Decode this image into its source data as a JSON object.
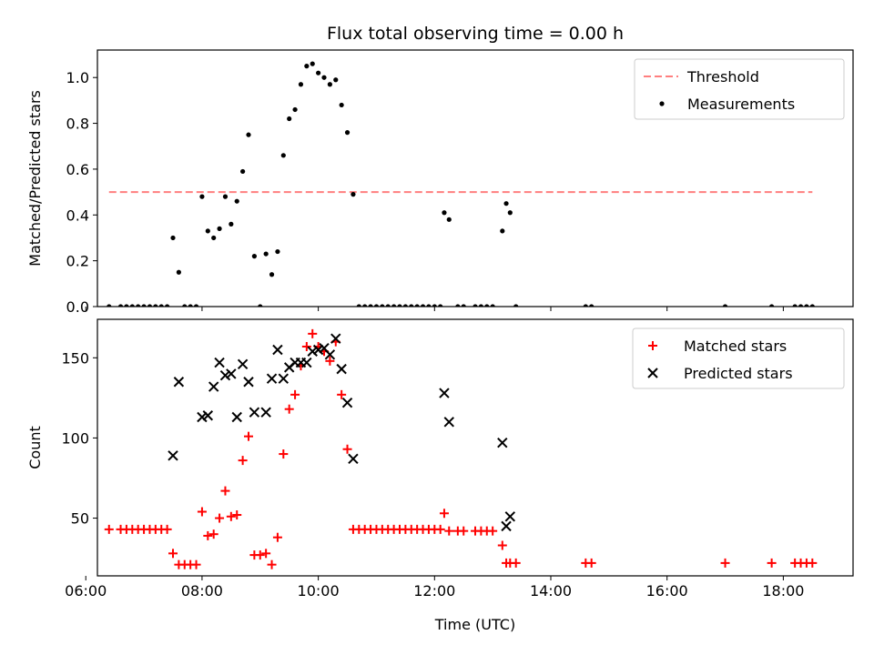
{
  "chart_data": [
    {
      "type": "scatter",
      "title": "Flux total observing time = 0.00 h",
      "xlabel": "",
      "ylabel": "Matched/Predicted stars",
      "xlim": [
        "06:12",
        "19:12"
      ],
      "ylim": [
        0,
        1.12
      ],
      "x_ticks": [
        "06:00",
        "08:00",
        "10:00",
        "12:00",
        "14:00",
        "16:00",
        "18:00"
      ],
      "y_ticks": [
        "0.0",
        "0.2",
        "0.4",
        "0.6",
        "0.8",
        "1.0"
      ],
      "legend_position": "top-right",
      "series": [
        {
          "name": "Threshold",
          "kind": "line",
          "style": "dashed",
          "color": "#ff7f7f",
          "points": [
            [
              "06:24",
              0.5
            ],
            [
              "18:30",
              0.5
            ]
          ]
        },
        {
          "name": "Measurements",
          "kind": "scatter",
          "marker": "dot",
          "color": "#000000",
          "points": [
            [
              "06:24",
              0.0
            ],
            [
              "06:36",
              0.0
            ],
            [
              "06:42",
              0.0
            ],
            [
              "06:48",
              0.0
            ],
            [
              "06:54",
              0.0
            ],
            [
              "07:00",
              0.0
            ],
            [
              "07:06",
              0.0
            ],
            [
              "07:12",
              0.0
            ],
            [
              "07:18",
              0.0
            ],
            [
              "07:24",
              0.0
            ],
            [
              "07:30",
              0.3
            ],
            [
              "07:36",
              0.15
            ],
            [
              "07:42",
              0.0
            ],
            [
              "07:48",
              0.0
            ],
            [
              "07:54",
              0.0
            ],
            [
              "08:00",
              0.48
            ],
            [
              "08:06",
              0.33
            ],
            [
              "08:12",
              0.3
            ],
            [
              "08:18",
              0.34
            ],
            [
              "08:24",
              0.48
            ],
            [
              "08:30",
              0.36
            ],
            [
              "08:36",
              0.46
            ],
            [
              "08:42",
              0.59
            ],
            [
              "08:48",
              0.75
            ],
            [
              "08:54",
              0.22
            ],
            [
              "09:00",
              0.0
            ],
            [
              "09:06",
              0.23
            ],
            [
              "09:12",
              0.14
            ],
            [
              "09:18",
              0.24
            ],
            [
              "09:24",
              0.66
            ],
            [
              "09:30",
              0.82
            ],
            [
              "09:36",
              0.86
            ],
            [
              "09:42",
              0.97
            ],
            [
              "09:48",
              1.05
            ],
            [
              "09:54",
              1.06
            ],
            [
              "10:00",
              1.02
            ],
            [
              "10:06",
              1.0
            ],
            [
              "10:12",
              0.97
            ],
            [
              "10:18",
              0.99
            ],
            [
              "10:24",
              0.88
            ],
            [
              "10:30",
              0.76
            ],
            [
              "10:36",
              0.49
            ],
            [
              "10:42",
              0.0
            ],
            [
              "10:48",
              0.0
            ],
            [
              "10:54",
              0.0
            ],
            [
              "11:00",
              0.0
            ],
            [
              "11:06",
              0.0
            ],
            [
              "11:12",
              0.0
            ],
            [
              "11:18",
              0.0
            ],
            [
              "11:24",
              0.0
            ],
            [
              "11:30",
              0.0
            ],
            [
              "11:36",
              0.0
            ],
            [
              "11:42",
              0.0
            ],
            [
              "11:48",
              0.0
            ],
            [
              "11:54",
              0.0
            ],
            [
              "12:00",
              0.0
            ],
            [
              "12:06",
              0.0
            ],
            [
              "12:10",
              0.41
            ],
            [
              "12:15",
              0.38
            ],
            [
              "12:24",
              0.0
            ],
            [
              "12:30",
              0.0
            ],
            [
              "12:42",
              0.0
            ],
            [
              "12:48",
              0.0
            ],
            [
              "12:54",
              0.0
            ],
            [
              "13:00",
              0.0
            ],
            [
              "13:10",
              0.33
            ],
            [
              "13:14",
              0.45
            ],
            [
              "13:18",
              0.41
            ],
            [
              "13:24",
              0.0
            ],
            [
              "14:36",
              0.0
            ],
            [
              "14:42",
              0.0
            ],
            [
              "17:00",
              0.0
            ],
            [
              "17:48",
              0.0
            ],
            [
              "18:12",
              0.0
            ],
            [
              "18:18",
              0.0
            ],
            [
              "18:24",
              0.0
            ],
            [
              "18:30",
              0.0
            ]
          ]
        }
      ]
    },
    {
      "type": "scatter",
      "title": "",
      "xlabel": "Time (UTC)",
      "ylabel": "Count",
      "xlim": [
        "06:12",
        "19:12"
      ],
      "ylim": [
        14,
        174
      ],
      "x_ticks": [
        "06:00",
        "08:00",
        "10:00",
        "12:00",
        "14:00",
        "16:00",
        "18:00"
      ],
      "y_ticks": [
        "50",
        "100",
        "150"
      ],
      "legend_position": "top-right",
      "series": [
        {
          "name": "Matched stars",
          "kind": "scatter",
          "marker": "plus",
          "color": "#ff0000",
          "points": [
            [
              "06:24",
              43
            ],
            [
              "06:36",
              43
            ],
            [
              "06:42",
              43
            ],
            [
              "06:48",
              43
            ],
            [
              "06:54",
              43
            ],
            [
              "07:00",
              43
            ],
            [
              "07:06",
              43
            ],
            [
              "07:12",
              43
            ],
            [
              "07:18",
              43
            ],
            [
              "07:24",
              43
            ],
            [
              "07:30",
              28
            ],
            [
              "07:36",
              21
            ],
            [
              "07:42",
              21
            ],
            [
              "07:48",
              21
            ],
            [
              "07:54",
              21
            ],
            [
              "08:00",
              54
            ],
            [
              "08:06",
              39
            ],
            [
              "08:12",
              40
            ],
            [
              "08:18",
              50
            ],
            [
              "08:24",
              67
            ],
            [
              "08:30",
              51
            ],
            [
              "08:36",
              52
            ],
            [
              "08:42",
              86
            ],
            [
              "08:48",
              101
            ],
            [
              "08:54",
              27
            ],
            [
              "09:00",
              27
            ],
            [
              "09:06",
              28
            ],
            [
              "09:12",
              21
            ],
            [
              "09:18",
              38
            ],
            [
              "09:24",
              90
            ],
            [
              "09:30",
              118
            ],
            [
              "09:36",
              127
            ],
            [
              "09:42",
              145
            ],
            [
              "09:48",
              157
            ],
            [
              "09:54",
              165
            ],
            [
              "10:00",
              157
            ],
            [
              "10:06",
              154
            ],
            [
              "10:12",
              148
            ],
            [
              "10:18",
              160
            ],
            [
              "10:24",
              127
            ],
            [
              "10:30",
              93
            ],
            [
              "10:36",
              43
            ],
            [
              "10:42",
              43
            ],
            [
              "10:48",
              43
            ],
            [
              "10:54",
              43
            ],
            [
              "11:00",
              43
            ],
            [
              "11:06",
              43
            ],
            [
              "11:12",
              43
            ],
            [
              "11:18",
              43
            ],
            [
              "11:24",
              43
            ],
            [
              "11:30",
              43
            ],
            [
              "11:36",
              43
            ],
            [
              "11:42",
              43
            ],
            [
              "11:48",
              43
            ],
            [
              "11:54",
              43
            ],
            [
              "12:00",
              43
            ],
            [
              "12:06",
              43
            ],
            [
              "12:10",
              53
            ],
            [
              "12:15",
              42
            ],
            [
              "12:24",
              42
            ],
            [
              "12:30",
              42
            ],
            [
              "12:42",
              42
            ],
            [
              "12:48",
              42
            ],
            [
              "12:54",
              42
            ],
            [
              "13:00",
              42
            ],
            [
              "13:10",
              33
            ],
            [
              "13:14",
              22
            ],
            [
              "13:18",
              22
            ],
            [
              "13:24",
              22
            ],
            [
              "14:36",
              22
            ],
            [
              "14:42",
              22
            ],
            [
              "17:00",
              22
            ],
            [
              "17:48",
              22
            ],
            [
              "18:12",
              22
            ],
            [
              "18:18",
              22
            ],
            [
              "18:24",
              22
            ],
            [
              "18:30",
              22
            ]
          ]
        },
        {
          "name": "Predicted stars",
          "kind": "scatter",
          "marker": "cross",
          "color": "#000000",
          "points": [
            [
              "07:30",
              89
            ],
            [
              "07:36",
              135
            ],
            [
              "08:00",
              113
            ],
            [
              "08:06",
              114
            ],
            [
              "08:12",
              132
            ],
            [
              "08:18",
              147
            ],
            [
              "08:24",
              139
            ],
            [
              "08:30",
              140
            ],
            [
              "08:36",
              113
            ],
            [
              "08:42",
              146
            ],
            [
              "08:48",
              135
            ],
            [
              "08:54",
              116
            ],
            [
              "09:06",
              116
            ],
            [
              "09:12",
              137
            ],
            [
              "09:18",
              155
            ],
            [
              "09:24",
              137
            ],
            [
              "09:30",
              144
            ],
            [
              "09:36",
              147
            ],
            [
              "09:42",
              147
            ],
            [
              "09:48",
              147
            ],
            [
              "09:54",
              154
            ],
            [
              "10:00",
              155
            ],
            [
              "10:06",
              156
            ],
            [
              "10:12",
              152
            ],
            [
              "10:18",
              162
            ],
            [
              "10:24",
              143
            ],
            [
              "10:30",
              122
            ],
            [
              "10:36",
              87
            ],
            [
              "12:10",
              128
            ],
            [
              "12:15",
              110
            ],
            [
              "13:10",
              97
            ],
            [
              "13:14",
              45
            ],
            [
              "13:18",
              51
            ]
          ]
        }
      ]
    }
  ]
}
